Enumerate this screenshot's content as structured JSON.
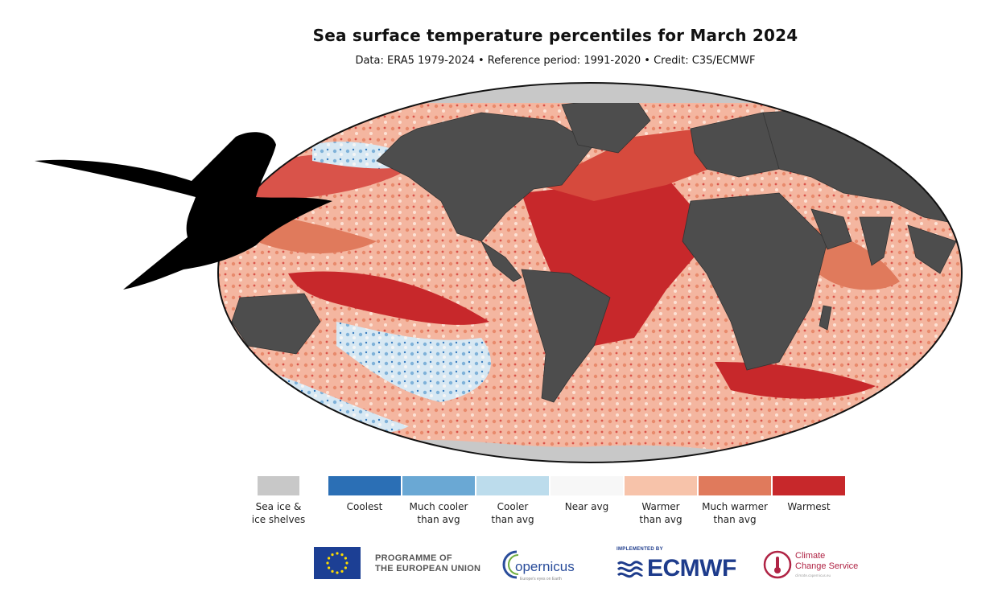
{
  "header": {
    "title": "Sea surface temperature percentiles for March 2024",
    "subtitle": "Data: ERA5 1979-2024 • Reference period: 1991-2020 • Credit: C3S/ECMWF"
  },
  "map": {
    "projection": "Robinson",
    "land_color": "#4d4d4d",
    "border_color": "#111111",
    "overlay": "bird-silhouette"
  },
  "legend": {
    "items": [
      {
        "label_lines": [
          "Sea ice &",
          "ice shelves"
        ],
        "color": "#c8c8c8"
      },
      {
        "label_lines": [
          "Coolest",
          ""
        ],
        "color": "#2b6fb5"
      },
      {
        "label_lines": [
          "Much cooler",
          "than avg"
        ],
        "color": "#6aa8d4"
      },
      {
        "label_lines": [
          "Cooler",
          "than avg"
        ],
        "color": "#bcdcec"
      },
      {
        "label_lines": [
          "Near avg",
          ""
        ],
        "color": "#f7f7f7"
      },
      {
        "label_lines": [
          "Warmer",
          "than avg"
        ],
        "color": "#f7c3aa"
      },
      {
        "label_lines": [
          "Much warmer",
          "than avg"
        ],
        "color": "#e07a5c"
      },
      {
        "label_lines": [
          "Warmest",
          ""
        ],
        "color": "#c7282b"
      }
    ]
  },
  "footer": {
    "eu_line1": "PROGRAMME OF",
    "eu_line2": "THE EUROPEAN UNION",
    "copernicus": "opernicus",
    "copernicus_tagline": "Europe's eyes on Earth",
    "ecmwf_top": "IMPLEMENTED BY",
    "ecmwf": "ECMWF",
    "c3s_line1": "Climate",
    "c3s_line2": "Change Service",
    "c3s_sub": "climate.copernicus.eu"
  }
}
